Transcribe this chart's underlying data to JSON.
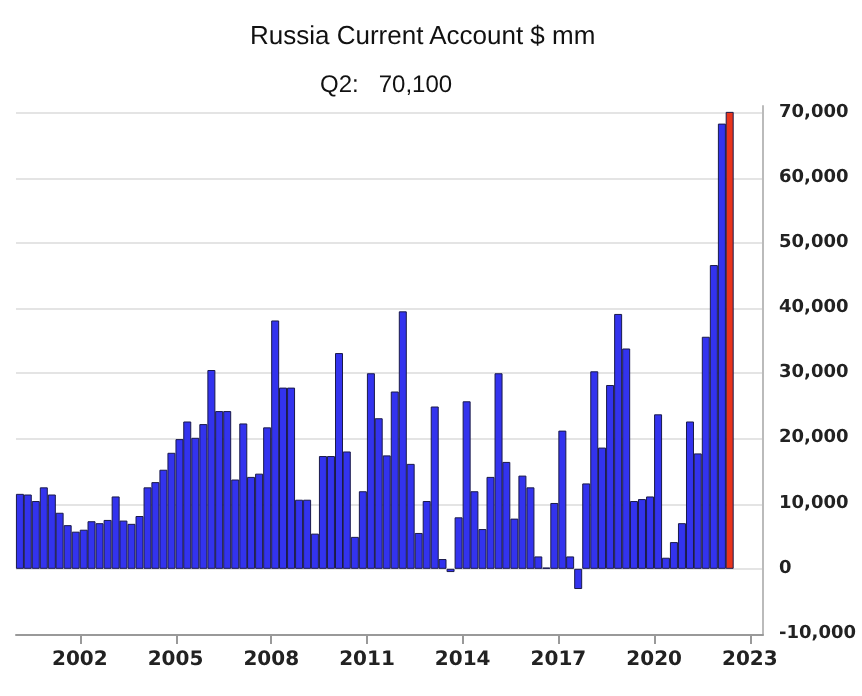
{
  "chart_data": {
    "type": "bar",
    "title": "Russia Current Account $ mm",
    "annotations": [
      "Q2:   70,100"
    ],
    "x": [
      "2000-02-15",
      "2000-05-15",
      "2000-08-15",
      "2000-11-15",
      "2001-02-15",
      "2001-05-15",
      "2001-08-15",
      "2001-11-15",
      "2002-02-15",
      "2002-05-15",
      "2002-08-15",
      "2002-11-15",
      "2003-02-15",
      "2003-05-15",
      "2003-08-15",
      "2003-11-15",
      "2004-02-15",
      "2004-05-15",
      "2004-08-15",
      "2004-11-15",
      "2005-02-15",
      "2005-05-15",
      "2005-08-15",
      "2005-11-15",
      "2006-02-15",
      "2006-05-15",
      "2006-08-15",
      "2006-11-15",
      "2007-02-15",
      "2007-05-15",
      "2007-08-15",
      "2007-11-15",
      "2008-02-15",
      "2008-05-15",
      "2008-08-15",
      "2008-11-15",
      "2009-02-15",
      "2009-05-15",
      "2009-08-15",
      "2009-11-15",
      "2010-02-15",
      "2010-05-15",
      "2010-08-15",
      "2010-11-15",
      "2011-02-15",
      "2011-05-15",
      "2011-08-15",
      "2011-11-15",
      "2012-02-15",
      "2012-05-15",
      "2012-08-15",
      "2012-11-15",
      "2013-02-15",
      "2013-05-15",
      "2013-08-15",
      "2013-11-15",
      "2014-02-15",
      "2014-05-15",
      "2014-08-15",
      "2014-11-15",
      "2015-02-15",
      "2015-05-15",
      "2015-08-15",
      "2015-11-15",
      "2016-02-15",
      "2016-05-15",
      "2016-08-15",
      "2016-11-15",
      "2017-02-15",
      "2017-05-15",
      "2017-08-15",
      "2017-11-15",
      "2018-02-15",
      "2018-05-15",
      "2018-08-15",
      "2018-11-15",
      "2019-02-15",
      "2019-05-15",
      "2019-08-15",
      "2019-11-15",
      "2020-02-15",
      "2020-05-15",
      "2020-08-15",
      "2020-11-15",
      "2021-02-15",
      "2021-05-15",
      "2021-08-15",
      "2021-11-15",
      "2022-02-15",
      "2022-05-15"
    ],
    "values": [
      11500,
      11400,
      10400,
      12500,
      11400,
      8600,
      6700,
      5700,
      6000,
      7300,
      7000,
      7500,
      11100,
      7400,
      6900,
      8100,
      12500,
      13300,
      15200,
      17800,
      19900,
      22600,
      20100,
      22200,
      30500,
      24200,
      24200,
      13700,
      22300,
      14100,
      14600,
      21700,
      38100,
      27800,
      27800,
      10600,
      10600,
      5400,
      17300,
      17300,
      33100,
      18000,
      4900,
      11900,
      30000,
      23100,
      17400,
      27200,
      39500,
      16100,
      5500,
      10400,
      24900,
      1500,
      -500,
      7900,
      25700,
      11900,
      6100,
      14100,
      30000,
      16400,
      7700,
      14300,
      12500,
      1900,
      200,
      10100,
      21200,
      1900,
      -3100,
      13100,
      30300,
      18600,
      28200,
      39100,
      33800,
      10400,
      10700,
      11100,
      23700,
      1700,
      4100,
      7000,
      22600,
      17700,
      35600,
      46600,
      68300,
      70100
    ],
    "colors": [
      "#3333ee",
      "#3333ee",
      "#3333ee",
      "#3333ee",
      "#3333ee",
      "#3333ee",
      "#3333ee",
      "#3333ee",
      "#3333ee",
      "#3333ee",
      "#3333ee",
      "#3333ee",
      "#3333ee",
      "#3333ee",
      "#3333ee",
      "#3333ee",
      "#3333ee",
      "#3333ee",
      "#3333ee",
      "#3333ee",
      "#3333ee",
      "#3333ee",
      "#3333ee",
      "#3333ee",
      "#3333ee",
      "#3333ee",
      "#3333ee",
      "#3333ee",
      "#3333ee",
      "#3333ee",
      "#3333ee",
      "#3333ee",
      "#3333ee",
      "#3333ee",
      "#3333ee",
      "#3333ee",
      "#3333ee",
      "#3333ee",
      "#3333ee",
      "#3333ee",
      "#3333ee",
      "#3333ee",
      "#3333ee",
      "#3333ee",
      "#3333ee",
      "#3333ee",
      "#3333ee",
      "#3333ee",
      "#3333ee",
      "#3333ee",
      "#3333ee",
      "#3333ee",
      "#3333ee",
      "#3333ee",
      "#3333ee",
      "#3333ee",
      "#3333ee",
      "#3333ee",
      "#3333ee",
      "#3333ee",
      "#3333ee",
      "#3333ee",
      "#3333ee",
      "#3333ee",
      "#3333ee",
      "#3333ee",
      "#3333ee",
      "#3333ee",
      "#3333ee",
      "#3333ee",
      "#3333ee",
      "#3333ee",
      "#3333ee",
      "#3333ee",
      "#3333ee",
      "#3333ee",
      "#3333ee",
      "#3333ee",
      "#3333ee",
      "#3333ee",
      "#3333ee",
      "#3333ee",
      "#3333ee",
      "#3333ee",
      "#3333ee",
      "#3333ee",
      "#3333ee",
      "#3333ee",
      "#3333ee",
      "#e8341c"
    ],
    "xlim": [
      "2000",
      "2023-06"
    ],
    "xticks": [
      "2002",
      "2005",
      "2008",
      "2011",
      "2014",
      "2017",
      "2020",
      "2023"
    ],
    "ylim": [
      -10000,
      71000
    ],
    "yticks": [
      {
        "value": -10000,
        "label": "-10,000"
      },
      0,
      {
        "value": 10000,
        "label": "10,000"
      },
      {
        "value": 20000,
        "label": "20,000"
      },
      {
        "value": 30000,
        "label": "30,000"
      },
      {
        "value": 40000,
        "label": "40,000"
      },
      {
        "value": 50000,
        "label": "50,000"
      },
      {
        "value": 60000,
        "label": "60,000"
      },
      {
        "value": 70000,
        "label": "70,000"
      }
    ],
    "grid": "y"
  }
}
